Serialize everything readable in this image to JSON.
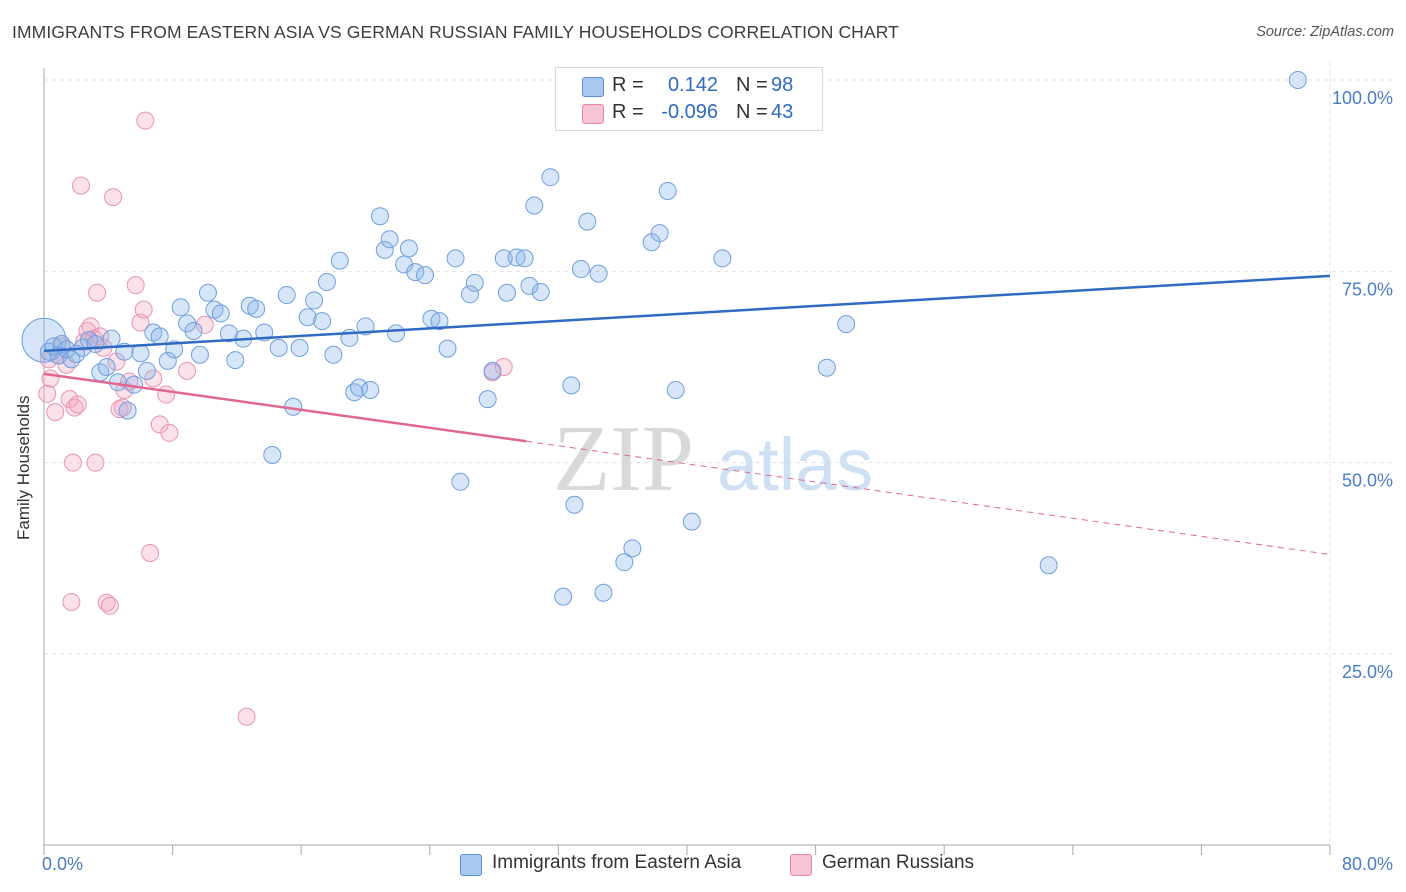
{
  "header": {
    "title": "IMMIGRANTS FROM EASTERN ASIA VS GERMAN RUSSIAN FAMILY HOUSEHOLDS CORRELATION CHART",
    "source": "Source: ZipAtlas.com"
  },
  "watermark": {
    "zip": "ZIP",
    "atlas": "atlas"
  },
  "legend": {
    "rows": [
      {
        "r_label": "R =",
        "r_value": "0.142",
        "n_label": "N =",
        "n_value": "98",
        "color": "#a9c8ef",
        "border": "#5b8fd6"
      },
      {
        "r_label": "R =",
        "r_value": "-0.096",
        "n_label": "N =",
        "n_value": "43",
        "color": "#f7c4d3",
        "border": "#e584a4"
      }
    ]
  },
  "bottom_legend": [
    {
      "label": "Immigrants from Eastern Asia",
      "color": "#a9c8ef",
      "border": "#5b8fd6"
    },
    {
      "label": "German Russians",
      "color": "#f7c4d3",
      "border": "#e584a4"
    }
  ],
  "colors": {
    "blue_fill": "rgba(137,180,232,0.35)",
    "blue_stroke": "#6f9fde",
    "blue_line": "#2f6ac3",
    "pink_fill": "rgba(244,170,195,0.35)",
    "pink_stroke": "#e993b0",
    "pink_line": "#e0688f",
    "grid": "#e3e3e3",
    "tick_label": "#4a7cc9"
  },
  "chart_data": {
    "type": "scatter",
    "title": "IMMIGRANTS FROM EASTERN ASIA VS GERMAN RUSSIAN FAMILY HOUSEHOLDS CORRELATION CHART",
    "xlabel": "",
    "ylabel": "Family Households",
    "xlim": [
      0,
      80
    ],
    "ylim": [
      0,
      104
    ],
    "x_tick_labels": [
      "0.0%",
      "80.0%"
    ],
    "y_ticks": [
      25,
      50,
      75,
      100
    ],
    "y_tick_labels": [
      "25.0%",
      "50.0%",
      "75.0%",
      "100.0%"
    ],
    "grid": true,
    "series": [
      {
        "name": "Immigrants from Eastern Asia",
        "points": [
          [
            0.0,
            66.0
          ],
          [
            0.3,
            64.5
          ],
          [
            0.6,
            65.2
          ],
          [
            0.9,
            64.0
          ],
          [
            1.1,
            65.5
          ],
          [
            1.4,
            64.8
          ],
          [
            1.7,
            63.5
          ],
          [
            2.0,
            64.2
          ],
          [
            2.4,
            65.0
          ],
          [
            2.8,
            66.0
          ],
          [
            3.2,
            65.5
          ],
          [
            3.5,
            61.8
          ],
          [
            3.9,
            62.5
          ],
          [
            4.2,
            66.2
          ],
          [
            4.6,
            60.5
          ],
          [
            5.0,
            64.5
          ],
          [
            5.2,
            56.8
          ],
          [
            5.6,
            60.2
          ],
          [
            6.0,
            64.3
          ],
          [
            6.4,
            62.0
          ],
          [
            6.8,
            67.0
          ],
          [
            7.2,
            66.5
          ],
          [
            7.7,
            63.3
          ],
          [
            8.1,
            64.8
          ],
          [
            8.5,
            70.3
          ],
          [
            8.9,
            68.2
          ],
          [
            9.3,
            67.2
          ],
          [
            9.7,
            64.1
          ],
          [
            10.2,
            72.2
          ],
          [
            10.6,
            70.0
          ],
          [
            11.0,
            69.5
          ],
          [
            11.5,
            66.9
          ],
          [
            11.9,
            63.4
          ],
          [
            12.4,
            66.2
          ],
          [
            12.8,
            70.5
          ],
          [
            13.2,
            70.1
          ],
          [
            13.7,
            67.0
          ],
          [
            14.2,
            51.0
          ],
          [
            14.6,
            65.0
          ],
          [
            15.1,
            71.9
          ],
          [
            15.5,
            57.3
          ],
          [
            15.9,
            65.0
          ],
          [
            16.4,
            69.0
          ],
          [
            16.8,
            71.2
          ],
          [
            17.3,
            68.5
          ],
          [
            17.6,
            73.6
          ],
          [
            18.0,
            64.1
          ],
          [
            18.4,
            76.4
          ],
          [
            19.0,
            66.3
          ],
          [
            19.3,
            59.2
          ],
          [
            19.6,
            59.8
          ],
          [
            20.0,
            67.8
          ],
          [
            20.3,
            59.5
          ],
          [
            20.9,
            82.2
          ],
          [
            21.2,
            77.8
          ],
          [
            21.5,
            79.2
          ],
          [
            21.9,
            66.9
          ],
          [
            22.4,
            75.9
          ],
          [
            22.7,
            78.0
          ],
          [
            23.1,
            74.9
          ],
          [
            23.7,
            74.5
          ],
          [
            24.1,
            68.8
          ],
          [
            24.6,
            68.5
          ],
          [
            25.1,
            64.9
          ],
          [
            25.6,
            76.7
          ],
          [
            25.9,
            47.5
          ],
          [
            26.5,
            72.0
          ],
          [
            26.8,
            73.5
          ],
          [
            27.6,
            58.3
          ],
          [
            27.9,
            62.0
          ],
          [
            28.6,
            76.7
          ],
          [
            28.8,
            72.2
          ],
          [
            29.4,
            76.8
          ],
          [
            29.9,
            76.7
          ],
          [
            30.2,
            73.1
          ],
          [
            30.5,
            83.6
          ],
          [
            30.9,
            72.3
          ],
          [
            31.5,
            87.3
          ],
          [
            32.3,
            32.5
          ],
          [
            32.8,
            60.1
          ],
          [
            33.0,
            44.5
          ],
          [
            33.4,
            75.3
          ],
          [
            33.8,
            81.5
          ],
          [
            34.5,
            74.7
          ],
          [
            34.8,
            33.0
          ],
          [
            36.1,
            37.0
          ],
          [
            36.6,
            38.8
          ],
          [
            37.8,
            78.8
          ],
          [
            38.3,
            80.0
          ],
          [
            38.8,
            85.5
          ],
          [
            39.3,
            59.5
          ],
          [
            40.3,
            42.3
          ],
          [
            42.2,
            76.7
          ],
          [
            48.7,
            62.4
          ],
          [
            49.9,
            68.1
          ],
          [
            62.5,
            36.6
          ],
          [
            78.0,
            100.0
          ]
        ],
        "trend": {
          "x": [
            0,
            80
          ],
          "y": [
            64.6,
            74.4
          ]
        }
      },
      {
        "name": "German Russians",
        "points": [
          [
            0.2,
            59.0
          ],
          [
            0.3,
            63.5
          ],
          [
            0.4,
            61.0
          ],
          [
            0.7,
            56.6
          ],
          [
            0.9,
            64.0
          ],
          [
            1.1,
            65.2
          ],
          [
            1.4,
            62.8
          ],
          [
            1.6,
            58.3
          ],
          [
            1.7,
            31.8
          ],
          [
            1.8,
            50.0
          ],
          [
            1.9,
            57.2
          ],
          [
            2.1,
            57.6
          ],
          [
            2.3,
            86.2
          ],
          [
            2.5,
            65.8
          ],
          [
            2.7,
            67.2
          ],
          [
            2.9,
            67.8
          ],
          [
            3.1,
            66.2
          ],
          [
            3.2,
            50.0
          ],
          [
            3.3,
            72.2
          ],
          [
            3.5,
            66.5
          ],
          [
            3.7,
            65.0
          ],
          [
            3.9,
            31.7
          ],
          [
            4.1,
            31.3
          ],
          [
            4.3,
            84.7
          ],
          [
            4.5,
            63.2
          ],
          [
            4.7,
            57.0
          ],
          [
            4.9,
            57.2
          ],
          [
            5.0,
            59.5
          ],
          [
            5.3,
            60.6
          ],
          [
            5.7,
            73.2
          ],
          [
            6.0,
            68.3
          ],
          [
            6.2,
            70.0
          ],
          [
            6.3,
            94.7
          ],
          [
            6.6,
            38.2
          ],
          [
            6.8,
            61.0
          ],
          [
            7.2,
            55.0
          ],
          [
            7.6,
            58.9
          ],
          [
            7.8,
            53.9
          ],
          [
            8.9,
            62.0
          ],
          [
            10.0,
            68.0
          ],
          [
            12.6,
            16.8
          ],
          [
            27.9,
            61.8
          ],
          [
            28.6,
            62.5
          ]
        ],
        "trend_solid": {
          "x": [
            0,
            30
          ],
          "y": [
            61.6,
            52.8
          ]
        },
        "trend_dashed": {
          "x": [
            30,
            80
          ],
          "y": [
            52.8,
            38.0
          ]
        }
      }
    ]
  }
}
